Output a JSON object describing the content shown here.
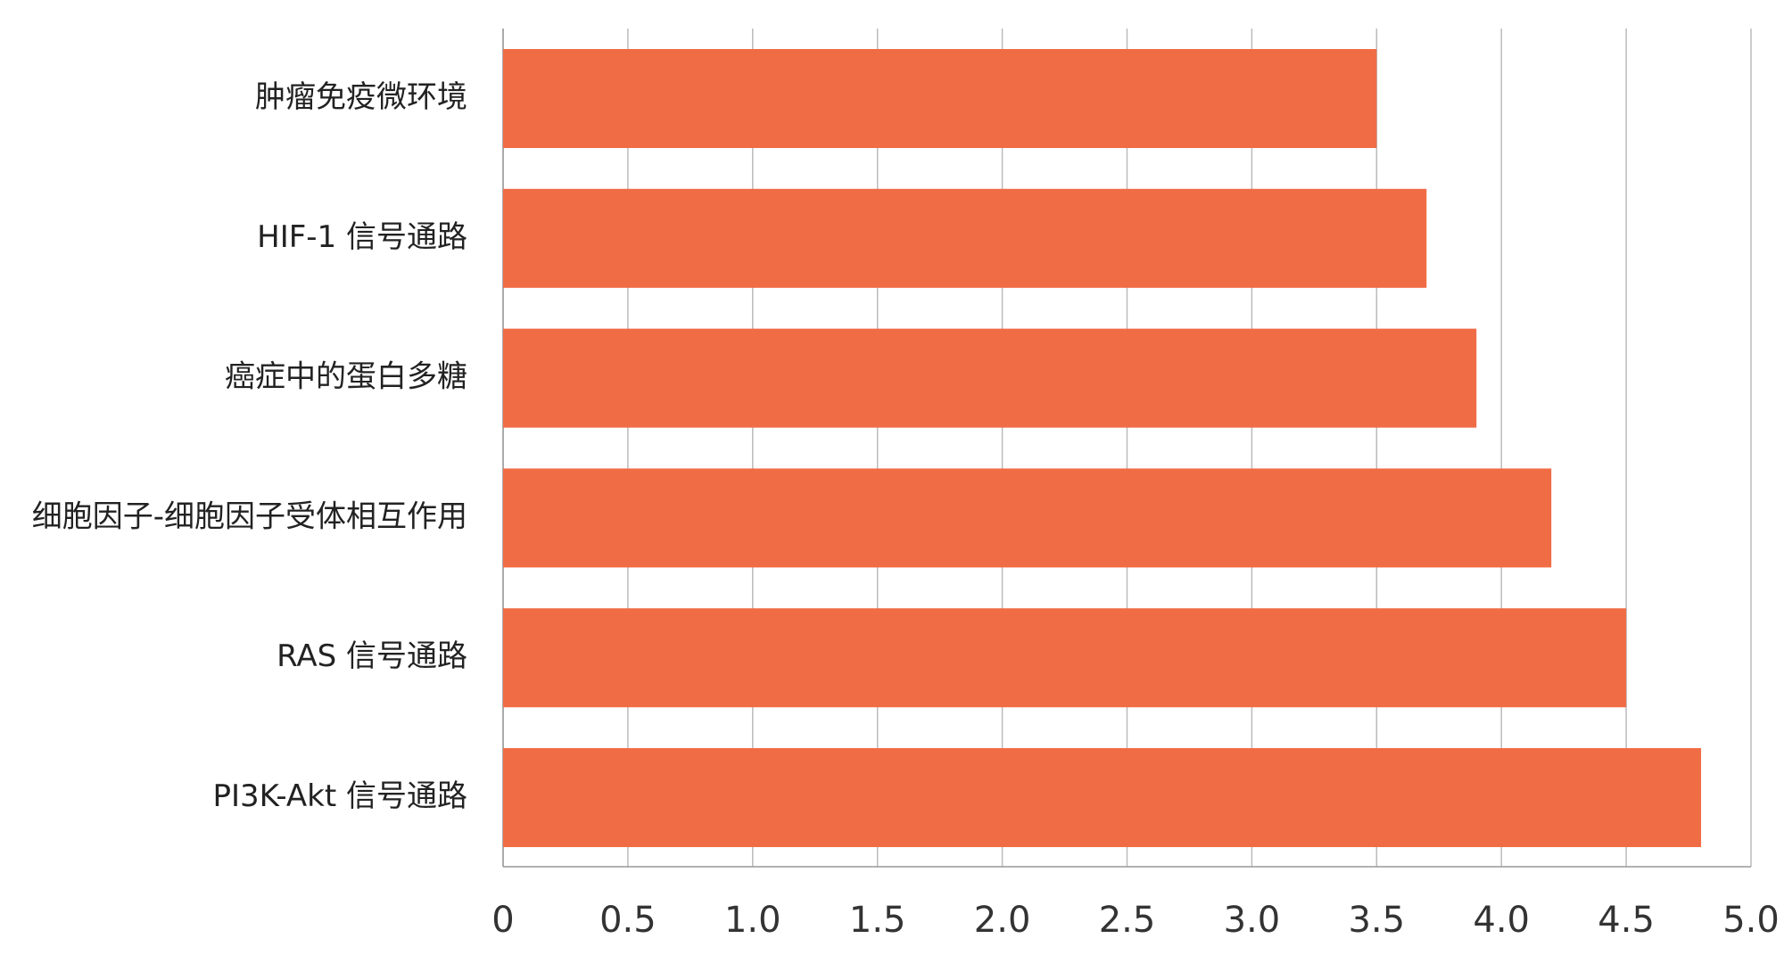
{
  "chart_data": {
    "type": "barh",
    "categories": [
      "肿瘤免疫微环境",
      "HIF-1 信号通路",
      "癌症中的蛋白多糖",
      "细胞因子-细胞因子受体相互作用",
      "RAS 信号通路",
      "PI3K-Akt 信号通路"
    ],
    "values": [
      3.5,
      3.7,
      3.9,
      4.2,
      4.5,
      4.8
    ],
    "color": "#f06c45",
    "xlim": [
      0,
      5
    ],
    "xticks": [
      0,
      0.5,
      {
        "value": 1,
        "label": "1.0"
      },
      1.5,
      {
        "value": 2,
        "label": "2.0"
      },
      2.5,
      {
        "value": 3,
        "label": "3.0"
      },
      3.5,
      {
        "value": 4,
        "label": "4.0"
      },
      4.5,
      {
        "value": 5,
        "label": "5.0"
      }
    ],
    "grid": true
  }
}
